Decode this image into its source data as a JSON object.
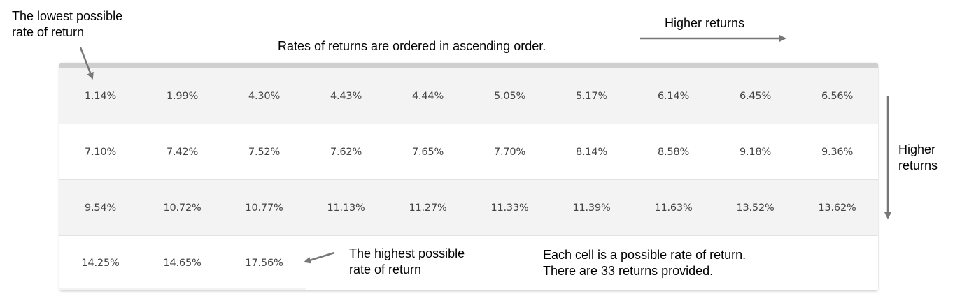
{
  "annotations": {
    "lowest": "The lowest possible\nrate of return",
    "ordered": "Rates of returns are ordered in ascending order.",
    "higher_right": "Higher returns",
    "higher_down": "Higher\nreturns",
    "highest": "The highest possible\nrate of return",
    "each_cell": "Each cell is a possible rate of return.\nThere are 33 returns provided."
  },
  "table": {
    "rows": [
      [
        "1.14%",
        "1.99%",
        "4.30%",
        "4.43%",
        "4.44%",
        "5.05%",
        "5.17%",
        "6.14%",
        "6.45%",
        "6.56%"
      ],
      [
        "7.10%",
        "7.42%",
        "7.52%",
        "7.62%",
        "7.65%",
        "7.70%",
        "8.14%",
        "8.58%",
        "9.18%",
        "9.36%"
      ],
      [
        "9.54%",
        "10.72%",
        "10.77%",
        "11.13%",
        "11.27%",
        "11.33%",
        "11.39%",
        "11.63%",
        "13.52%",
        "13.62%"
      ],
      [
        "14.25%",
        "14.65%",
        "17.56%"
      ]
    ]
  },
  "colors": {
    "row_shaded": "#f3f3f3",
    "row_plain": "#ffffff",
    "top_bar": "#cfcfcf",
    "arrow": "#777777",
    "cell_text": "#444444"
  }
}
